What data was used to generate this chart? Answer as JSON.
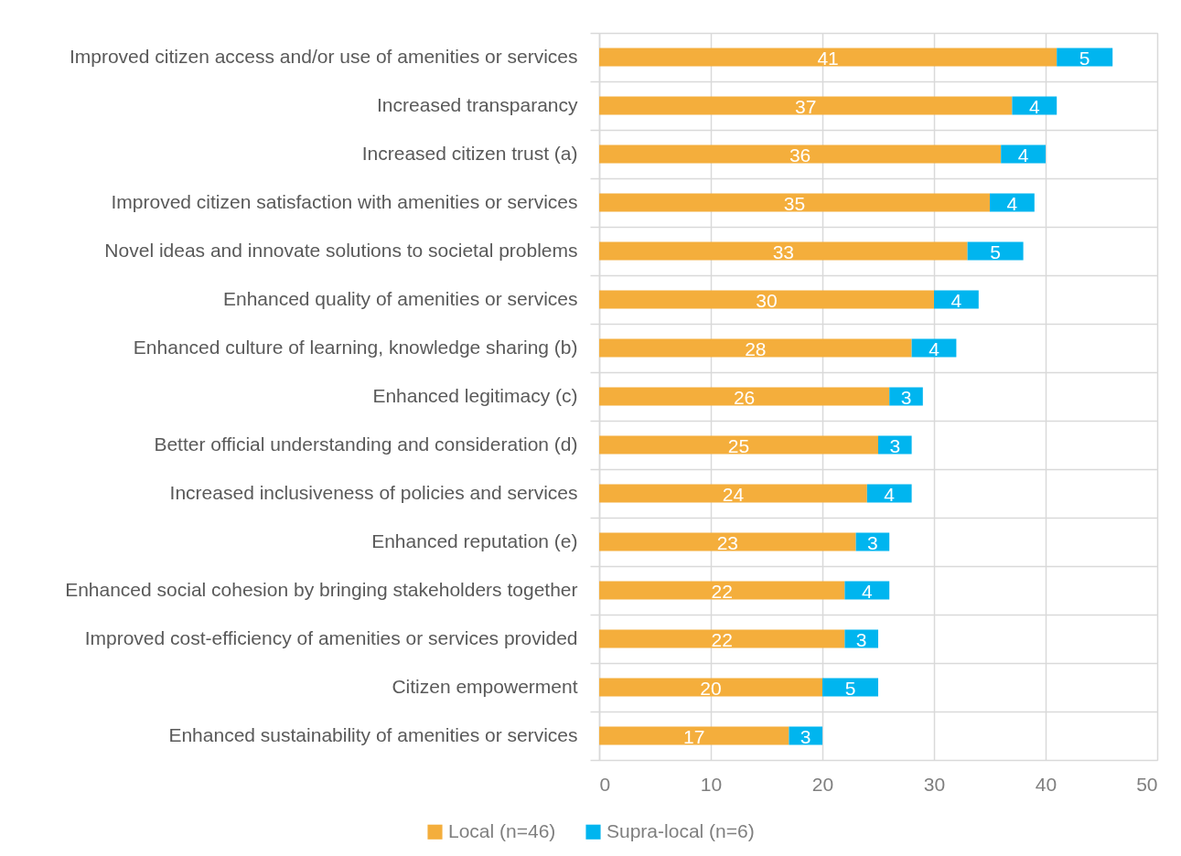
{
  "chart_data": {
    "type": "bar",
    "orientation": "horizontal",
    "stacked": true,
    "categories": [
      "Improved citizen access and/or use of amenities or services",
      "Increased transparancy",
      "Increased citizen trust (a)",
      "Improved citizen satisfaction with amenities or services",
      "Novel ideas and innovate solutions to societal problems",
      "Enhanced quality of amenities or services",
      "Enhanced culture of learning, knowledge sharing (b)",
      "Enhanced legitimacy (c)",
      "Better official understanding and consideration (d)",
      "Increased inclusiveness of policies and services",
      "Enhanced reputation (e)",
      "Enhanced social cohesion by bringing stakeholders together",
      "Improved cost-efficiency of amenities or services provided",
      "Citizen empowerment",
      "Enhanced sustainability of amenities or services"
    ],
    "series": [
      {
        "name": "Local (n=46)",
        "color": "#f4ae3c",
        "values": [
          41,
          37,
          36,
          35,
          33,
          30,
          28,
          26,
          25,
          24,
          23,
          22,
          22,
          20,
          17
        ]
      },
      {
        "name": "Supra-local (n=6)",
        "color": "#00b5ef",
        "values": [
          5,
          4,
          4,
          4,
          5,
          4,
          4,
          3,
          3,
          4,
          3,
          4,
          3,
          5,
          3
        ]
      }
    ],
    "xlim": [
      0,
      50
    ],
    "xticks": [
      0,
      10,
      20,
      30,
      40,
      50
    ],
    "data_labels": true,
    "grid": true,
    "legend": "bottom"
  }
}
